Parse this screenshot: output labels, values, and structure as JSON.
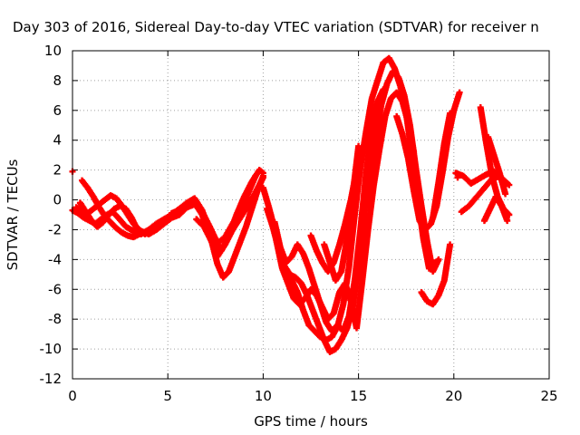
{
  "chart_data": {
    "type": "scatter",
    "title": "Day 303 of 2016, Sidereal Day-to-day VTEC variation (SDTVAR) for receiver n",
    "xlabel": "GPS time / hours",
    "ylabel": "SDTVAR / TECUs",
    "xlim": [
      0,
      25
    ],
    "ylim": [
      -12,
      10
    ],
    "xticks": [
      0,
      5,
      10,
      15,
      20,
      25
    ],
    "yticks": [
      -12,
      -10,
      -8,
      -6,
      -4,
      -2,
      0,
      2,
      4,
      6,
      8,
      10
    ],
    "grid": true,
    "marker": "plus",
    "color": "#ff0000",
    "series": [
      {
        "x": [
          0,
          0.3,
          0.6,
          0.9,
          1.2,
          1.5,
          1.8,
          2.1,
          2.4,
          2.8,
          3.2,
          3.6,
          4.0,
          4.4,
          4.8,
          5.2,
          5.6,
          6.0,
          6.4,
          6.8,
          7.2,
          7.5
        ],
        "values": [
          -0.7,
          -0.9,
          -1.2,
          -1.4,
          -1.6,
          -1.3,
          -1.0,
          -0.8,
          -1.2,
          -1.8,
          -2.1,
          -2.3,
          -2.0,
          -1.6,
          -1.3,
          -1.0,
          -0.6,
          -0.2,
          0.1,
          -0.7,
          -2.2,
          -3.1
        ]
      },
      {
        "x": [
          0.2,
          0.5,
          0.8,
          1.1,
          1.4,
          1.7,
          2.0,
          2.3,
          2.6,
          2.9,
          3.2,
          3.5,
          3.8
        ],
        "values": [
          -0.5,
          -0.8,
          -0.9,
          -0.6,
          -0.3,
          0.0,
          0.3,
          0.1,
          -0.4,
          -1.0,
          -1.6,
          -2.0,
          -2.3
        ]
      },
      {
        "x": [
          0.4,
          0.7,
          1.0,
          1.3,
          1.6,
          1.9,
          2.2,
          2.5,
          2.8,
          3.1,
          3.4
        ],
        "values": [
          -0.2,
          -0.8,
          -1.4,
          -1.8,
          -1.5,
          -1.0,
          -0.6,
          -0.4,
          -0.6,
          -1.2,
          -2.0
        ]
      },
      {
        "x": [
          0.5,
          0.8,
          1.1,
          1.4,
          1.7,
          2.0,
          2.3,
          2.6,
          2.9,
          3.2,
          3.5
        ],
        "values": [
          1.3,
          0.8,
          0.2,
          -0.5,
          -1.1,
          -1.5,
          -1.9,
          -2.2,
          -2.4,
          -2.5,
          -2.3
        ]
      },
      {
        "x": [
          3.6,
          4.0,
          4.4,
          4.8,
          5.2,
          5.6,
          6.0,
          6.4,
          6.8,
          7.2,
          7.6,
          8.0,
          8.4,
          8.8,
          9.2,
          9.6,
          10.0
        ],
        "values": [
          -2.1,
          -2.3,
          -2.0,
          -1.6,
          -1.2,
          -1.0,
          -0.5,
          -0.2,
          -1.0,
          -2.5,
          -3.8,
          -3.0,
          -2.0,
          -1.2,
          -0.4,
          0.5,
          1.5
        ]
      },
      {
        "x": [
          5.2,
          5.6,
          6.0,
          6.4,
          6.8,
          7.2,
          7.6,
          8.0,
          8.4,
          8.8,
          9.2,
          9.6
        ],
        "values": [
          -0.9,
          -0.7,
          -0.5,
          -0.3,
          -0.8,
          -1.8,
          -2.9,
          -2.5,
          -1.6,
          -0.8,
          0.4,
          1.6
        ]
      },
      {
        "x": [
          6.5,
          6.9,
          7.3,
          7.6,
          7.9,
          8.2,
          8.5,
          8.8,
          9.1,
          9.4,
          9.7,
          10.0
        ],
        "values": [
          -1.3,
          -1.8,
          -2.8,
          -4.3,
          -5.2,
          -4.8,
          -3.8,
          -2.8,
          -1.8,
          -0.6,
          0.6,
          1.6
        ]
      },
      {
        "x": [
          7.0,
          7.4,
          7.8,
          8.2,
          8.6,
          9.0,
          9.4,
          9.8,
          10.0
        ],
        "values": [
          -2.0,
          -2.6,
          -3.4,
          -2.4,
          -1.0,
          0.2,
          1.2,
          2.0,
          1.8
        ]
      },
      {
        "x": [
          10.0,
          10.3,
          10.6,
          10.9,
          11.2,
          11.5,
          11.8,
          12.1,
          12.4,
          12.7,
          13.0,
          13.3,
          13.6,
          13.9,
          14.2,
          14.5,
          14.8,
          15.1,
          15.4,
          15.7,
          16.0,
          16.3,
          16.6,
          16.9,
          17.2,
          17.5,
          17.8,
          18.1,
          18.4,
          18.7,
          19.0
        ],
        "values": [
          0.8,
          -0.5,
          -2.0,
          -3.6,
          -4.8,
          -5.4,
          -6.2,
          -7.4,
          -8.4,
          -8.8,
          -9.2,
          -9.4,
          -9.2,
          -8.5,
          -7.0,
          -4.5,
          -1.0,
          2.2,
          4.6,
          6.8,
          8.0,
          9.2,
          9.5,
          8.8,
          7.6,
          5.8,
          3.0,
          0.2,
          -2.6,
          -4.6,
          -4.2
        ]
      },
      {
        "x": [
          10.2,
          10.5,
          10.8,
          11.1,
          11.4,
          11.7,
          12.0,
          12.3,
          12.6,
          12.9,
          13.2,
          13.5,
          13.8,
          14.1,
          14.4,
          14.7,
          15.0,
          15.3,
          15.6,
          15.9,
          16.2,
          16.5,
          16.8,
          17.1,
          17.4,
          17.7,
          18.0,
          18.3,
          18.6,
          18.9,
          19.2
        ],
        "values": [
          -0.6,
          -1.8,
          -3.2,
          -4.4,
          -5.0,
          -5.2,
          -5.6,
          -6.4,
          -7.4,
          -8.4,
          -9.4,
          -10.2,
          -10.0,
          -9.4,
          -8.6,
          -7.2,
          -4.2,
          -0.8,
          1.8,
          4.2,
          6.4,
          7.8,
          8.6,
          8.2,
          7.0,
          5.0,
          2.2,
          -0.4,
          -2.8,
          -4.8,
          -4.0
        ]
      },
      {
        "x": [
          10.4,
          10.7,
          11.0,
          11.3,
          11.6,
          11.9,
          12.2,
          12.5,
          12.8,
          13.1,
          13.4,
          13.7,
          14.0,
          14.3,
          14.6,
          14.9,
          15.2,
          15.5,
          15.8,
          16.1,
          16.4,
          16.7,
          17.0,
          17.3,
          17.6,
          17.9
        ],
        "values": [
          -1.0,
          -2.8,
          -4.6,
          -5.6,
          -6.6,
          -7.0,
          -6.6,
          -6.0,
          -6.4,
          -7.2,
          -8.0,
          -7.6,
          -6.2,
          -5.6,
          -6.8,
          -8.6,
          -5.4,
          -2.0,
          1.0,
          3.4,
          5.6,
          6.8,
          7.2,
          6.6,
          5.2,
          3.2
        ]
      },
      {
        "x": [
          10.6,
          10.9,
          11.2,
          11.5,
          11.8,
          12.1,
          12.4,
          12.7,
          13.0,
          13.3,
          13.6,
          13.9,
          14.2,
          14.5,
          14.8,
          15.1,
          15.4,
          15.7,
          16.0,
          16.3
        ],
        "values": [
          -1.5,
          -3.2,
          -4.2,
          -3.8,
          -3.0,
          -3.6,
          -4.6,
          -5.8,
          -7.0,
          -8.2,
          -8.8,
          -8.4,
          -8.8,
          -7.8,
          -5.4,
          -2.0,
          1.8,
          4.8,
          6.6,
          7.4
        ]
      },
      {
        "x": [
          12.5,
          12.8,
          13.1,
          13.4,
          13.7,
          14.0,
          14.3,
          14.6,
          14.9
        ],
        "values": [
          -2.4,
          -3.4,
          -4.2,
          -4.8,
          -4.2,
          -3.0,
          -1.6,
          0.0,
          2.0
        ]
      },
      {
        "x": [
          13.2,
          13.5,
          13.8,
          14.1,
          14.4,
          14.7,
          15.0
        ],
        "values": [
          -3.0,
          -4.2,
          -5.4,
          -4.8,
          -2.6,
          0.4,
          3.6
        ]
      },
      {
        "x": [
          17.0,
          17.3,
          17.6,
          17.9,
          18.2,
          18.5,
          18.8,
          19.1,
          19.4,
          19.7,
          20.0,
          20.3
        ],
        "values": [
          5.6,
          4.4,
          2.8,
          0.6,
          -1.4,
          -2.0,
          -1.6,
          -0.4,
          1.8,
          4.2,
          6.0,
          7.2
        ]
      },
      {
        "x": [
          18.3,
          18.6,
          18.9,
          19.2,
          19.5,
          19.8
        ],
        "values": [
          -6.2,
          -6.8,
          -7.0,
          -6.4,
          -5.4,
          -3.0
        ]
      },
      {
        "x": [
          18.9,
          19.2,
          19.5,
          19.8
        ],
        "values": [
          -1.2,
          1.2,
          3.8,
          5.8
        ]
      },
      {
        "x": [
          20.1,
          20.5,
          20.9,
          21.3,
          21.7,
          22.1,
          22.5,
          22.9
        ],
        "values": [
          1.8,
          1.6,
          1.1,
          1.4,
          1.7,
          1.9,
          1.4,
          1.0
        ]
      },
      {
        "x": [
          20.4,
          20.8,
          21.2,
          21.6,
          22.0,
          22.4,
          22.8
        ],
        "values": [
          -0.8,
          -0.4,
          0.2,
          0.8,
          1.4,
          1.6,
          1.1
        ]
      },
      {
        "x": [
          21.6,
          21.9,
          22.2,
          22.5,
          22.8
        ],
        "values": [
          -1.4,
          -0.6,
          0.2,
          -0.4,
          -1.4
        ]
      },
      {
        "x": [
          21.4,
          21.7,
          22.0,
          22.3,
          22.6,
          22.9
        ],
        "values": [
          6.2,
          3.8,
          1.6,
          0.2,
          -0.6,
          -1.0
        ]
      },
      {
        "x": [
          21.8,
          22.1,
          22.4,
          22.7
        ],
        "values": [
          4.2,
          3.0,
          1.8,
          0.4
        ]
      }
    ],
    "isolated_points": [
      {
        "x": 0,
        "y": 1.9
      },
      {
        "x": 20.2,
        "y": 1.5
      }
    ]
  }
}
